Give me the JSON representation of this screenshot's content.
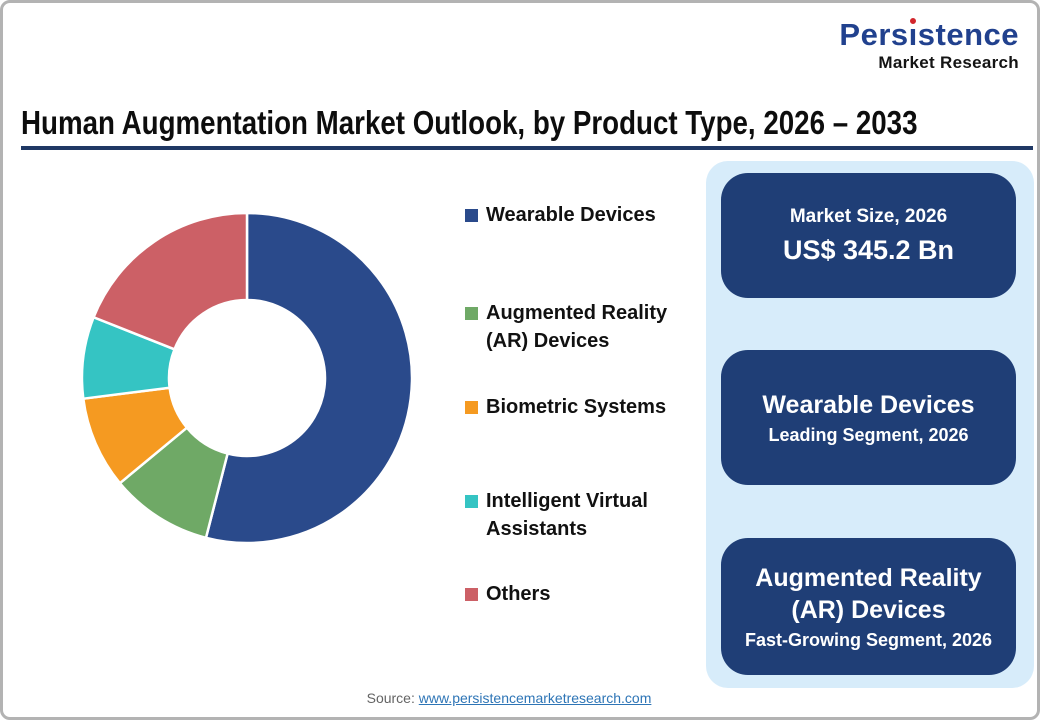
{
  "logo": {
    "brand": "Persistence",
    "brand_pre": "Pers",
    "brand_i": "ı",
    "brand_post": "stence",
    "subtitle": "Market Research"
  },
  "title": "Human Augmentation Market Outlook, by Product Type, 2026 – 2033",
  "chart_data": {
    "type": "pie",
    "subtype": "donut",
    "title": "Human Augmentation Market Outlook, by Product Type, 2026 – 2033",
    "start_angle_deg": 0,
    "direction": "clockwise",
    "inner_radius_ratio": 0.47,
    "legend_position": "right",
    "values_are": "estimated percent share of ring",
    "segments": [
      {
        "label": "Wearable Devices",
        "value": 54,
        "color": "#2A4A8B"
      },
      {
        "label": "Augmented Reality (AR) Devices",
        "value": 10,
        "color": "#6FA966"
      },
      {
        "label": "Biometric Systems",
        "value": 9,
        "color": "#F59A21"
      },
      {
        "label": "Intelligent Virtual Assistants",
        "value": 8,
        "color": "#35C4C3"
      },
      {
        "label": "Others",
        "value": 19,
        "color": "#CC6066"
      }
    ]
  },
  "cards": [
    {
      "heading": "Market Size, 2026",
      "value": "US$ 345.2 Bn"
    },
    {
      "heading": "Wearable Devices",
      "subheading": "Leading Segment, 2026"
    },
    {
      "heading": "Augmented Reality (AR) Devices",
      "subheading": "Fast-Growing Segment, 2026"
    }
  ],
  "source": {
    "prefix": "Source: ",
    "link": "www.persistencemarketresearch.com"
  },
  "theme": {
    "card_navy": "#1F3E76",
    "panel_blue": "#D7ECFA",
    "title_underline": "#1F3864",
    "link_blue": "#2E75B6",
    "logo_navy": "#21418E",
    "logo_red": "#D2262C",
    "source_gray": "#646464",
    "text_black": "#0D0D0D"
  }
}
